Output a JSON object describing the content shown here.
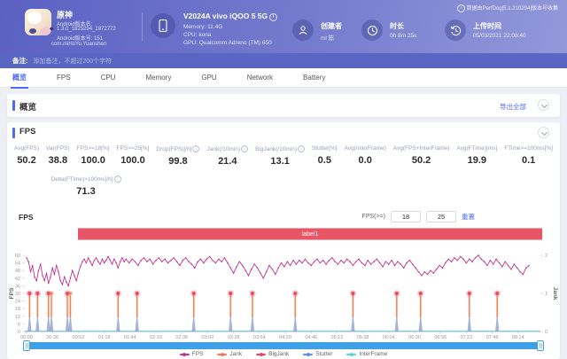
{
  "header": {
    "app": {
      "name": "原神",
      "version_name_label": "Android版本名:",
      "version_name_value": "1.3.0_1825294_1872772",
      "version_code_label": "Android版本号: 151",
      "package": "com.miHoYo.Yuanshen"
    },
    "device": {
      "title": "V2024A vivo iQOO 5 5G",
      "memory": "Memory: 11.4G",
      "cpu": "CPU: kona",
      "gpu": "GPU: Qualcomm Adreno (TM) 650"
    },
    "creator": {
      "label": "创建者",
      "value": "ml 陈"
    },
    "duration": {
      "label": "时长",
      "value": "0h 8m 25s"
    },
    "upload": {
      "label": "上传时间",
      "value": "05/03/2021 22:08:40"
    },
    "source_note": "数据由PerfDog[5.1.210204]版本号收集"
  },
  "note_bar": {
    "label": "备注:",
    "placeholder": "添加备注，不超过200个字符"
  },
  "tabs": [
    {
      "label": "概览",
      "active": true
    },
    {
      "label": "FPS",
      "active": false
    },
    {
      "label": "CPU",
      "active": false
    },
    {
      "label": "Memory",
      "active": false
    },
    {
      "label": "GPU",
      "active": false
    },
    {
      "label": "Network",
      "active": false
    },
    {
      "label": "Battery",
      "active": false
    }
  ],
  "overview_section": {
    "title": "概览",
    "export_label": "导出全部"
  },
  "fps_section": {
    "title": "FPS",
    "chart_title": "FPS",
    "metrics": [
      {
        "label": "Avg(FPS)",
        "value": "50.2",
        "info": false
      },
      {
        "label": "Var(FPS)",
        "value": "38.8",
        "info": false
      },
      {
        "label": "FPS>=18[%]",
        "value": "100.0",
        "info": false
      },
      {
        "label": "FPS>=25[%]",
        "value": "100.0",
        "info": false
      },
      {
        "label": "Drop(FPS)[/h]",
        "value": "99.8",
        "info": true
      },
      {
        "label": "Jank(/10min)",
        "value": "21.4",
        "info": true
      },
      {
        "label": "BigJank(/10min)",
        "value": "13.1",
        "info": true
      },
      {
        "label": "Stutter[%]",
        "value": "0.5",
        "info": false
      },
      {
        "label": "Avg(InterFrame)",
        "value": "0.0",
        "info": false
      },
      {
        "label": "Avg(FPS+InterFrame)",
        "value": "50.2",
        "info": false
      },
      {
        "label": "Avg(FTime)[ms]",
        "value": "19.9",
        "info": false
      },
      {
        "label": "FTime>=100ms[%]",
        "value": "0.1",
        "info": false
      }
    ],
    "metrics_row2": {
      "label": "Delta(FTime)>100ms[/h]",
      "value": "71.3",
      "info": true
    },
    "controls": {
      "label": "FPS(>=)",
      "low": "18",
      "high": "25",
      "reset": "重置"
    }
  },
  "chart_data": {
    "type": "line",
    "banner_label": "label1",
    "ylabel_left": "FPS",
    "ylabel_right": "Jank",
    "ylim_left": [
      0,
      60
    ],
    "yticks_left": [
      0,
      6,
      12,
      18,
      24,
      30,
      36,
      42,
      48,
      54,
      60
    ],
    "ylim_right": [
      0,
      2
    ],
    "yticks_right": [
      0,
      1,
      2
    ],
    "x_ticks": [
      "00:00",
      "00:26",
      "00:52",
      "01:18",
      "01:44",
      "02:10",
      "02:36",
      "03:02",
      "03:28",
      "03:54",
      "04:20",
      "04:46",
      "05:12",
      "05:38",
      "06:04",
      "06:30",
      "06:56",
      "07:22",
      "07:48",
      "08:14"
    ],
    "legend_position": "bottom",
    "scrollbar_color": "#3fa0e8",
    "banner_color": "#e85566",
    "series": [
      {
        "name": "FPS",
        "color": "#c0338f",
        "points": [
          [
            0,
            58
          ],
          [
            2,
            55
          ],
          [
            4,
            47
          ],
          [
            6,
            52
          ],
          [
            8,
            43
          ],
          [
            10,
            40
          ],
          [
            12,
            48
          ],
          [
            14,
            53
          ],
          [
            16,
            44
          ],
          [
            18,
            40
          ],
          [
            20,
            46
          ],
          [
            22,
            38
          ],
          [
            24,
            43
          ],
          [
            26,
            50
          ],
          [
            28,
            45
          ],
          [
            30,
            52
          ],
          [
            32,
            47
          ],
          [
            34,
            40
          ],
          [
            36,
            37
          ],
          [
            38,
            43
          ],
          [
            40,
            39
          ],
          [
            42,
            36
          ],
          [
            44,
            42
          ],
          [
            46,
            48
          ],
          [
            48,
            44
          ],
          [
            50,
            40
          ],
          [
            52,
            46
          ],
          [
            54,
            51
          ],
          [
            56,
            55
          ],
          [
            58,
            57
          ],
          [
            60,
            54
          ],
          [
            62,
            58
          ],
          [
            64,
            55
          ],
          [
            66,
            52
          ],
          [
            68,
            56
          ],
          [
            70,
            58
          ],
          [
            72,
            55
          ],
          [
            74,
            53
          ],
          [
            76,
            57
          ],
          [
            78,
            54
          ],
          [
            80,
            56
          ],
          [
            82,
            59
          ],
          [
            84,
            56
          ],
          [
            86,
            53
          ],
          [
            88,
            57
          ],
          [
            90,
            54
          ],
          [
            92,
            50
          ],
          [
            94,
            55
          ],
          [
            96,
            58
          ],
          [
            98,
            55
          ],
          [
            100,
            57
          ],
          [
            103,
            54
          ],
          [
            106,
            57
          ],
          [
            109,
            55
          ],
          [
            112,
            52
          ],
          [
            115,
            56
          ],
          [
            118,
            58
          ],
          [
            121,
            55
          ],
          [
            124,
            57
          ],
          [
            127,
            53
          ],
          [
            130,
            56
          ],
          [
            133,
            58
          ],
          [
            136,
            55
          ],
          [
            139,
            57
          ],
          [
            142,
            54
          ],
          [
            145,
            56
          ],
          [
            148,
            58
          ],
          [
            151,
            55
          ],
          [
            154,
            52
          ],
          [
            157,
            56
          ],
          [
            160,
            58
          ],
          [
            163,
            55
          ],
          [
            166,
            53
          ],
          [
            169,
            50
          ],
          [
            172,
            55
          ],
          [
            175,
            57
          ],
          [
            178,
            54
          ],
          [
            181,
            57
          ],
          [
            184,
            59
          ],
          [
            187,
            56
          ],
          [
            190,
            54
          ],
          [
            193,
            57
          ],
          [
            196,
            55
          ],
          [
            199,
            58
          ],
          [
            202,
            54
          ],
          [
            205,
            50
          ],
          [
            208,
            46
          ],
          [
            211,
            51
          ],
          [
            214,
            55
          ],
          [
            217,
            52
          ],
          [
            220,
            48
          ],
          [
            223,
            44
          ],
          [
            226,
            49
          ],
          [
            229,
            53
          ],
          [
            232,
            50
          ],
          [
            235,
            46
          ],
          [
            238,
            42
          ],
          [
            241,
            47
          ],
          [
            244,
            52
          ],
          [
            247,
            49
          ],
          [
            250,
            45
          ],
          [
            253,
            50
          ],
          [
            256,
            54
          ],
          [
            259,
            51
          ],
          [
            262,
            55
          ],
          [
            265,
            52
          ],
          [
            268,
            56
          ],
          [
            271,
            53
          ],
          [
            274,
            56
          ],
          [
            277,
            54
          ],
          [
            280,
            57
          ],
          [
            283,
            54
          ],
          [
            286,
            52
          ],
          [
            289,
            55
          ],
          [
            292,
            57
          ],
          [
            295,
            54
          ],
          [
            298,
            56
          ],
          [
            301,
            53
          ],
          [
            304,
            56
          ],
          [
            307,
            58
          ],
          [
            310,
            55
          ],
          [
            313,
            53
          ],
          [
            316,
            56
          ],
          [
            319,
            54
          ],
          [
            322,
            57
          ],
          [
            325,
            55
          ],
          [
            328,
            52
          ],
          [
            331,
            55
          ],
          [
            334,
            57
          ],
          [
            337,
            54
          ],
          [
            340,
            52
          ],
          [
            343,
            56
          ],
          [
            346,
            53
          ],
          [
            349,
            55
          ],
          [
            352,
            57
          ],
          [
            355,
            54
          ],
          [
            358,
            51
          ],
          [
            361,
            55
          ],
          [
            364,
            53
          ],
          [
            367,
            56
          ],
          [
            370,
            52
          ],
          [
            373,
            55
          ],
          [
            376,
            53
          ],
          [
            379,
            50
          ],
          [
            382,
            54
          ],
          [
            385,
            56
          ],
          [
            388,
            53
          ],
          [
            391,
            50
          ],
          [
            394,
            47
          ],
          [
            397,
            44
          ],
          [
            400,
            47
          ],
          [
            403,
            45
          ],
          [
            406,
            48
          ],
          [
            409,
            46
          ],
          [
            412,
            49
          ],
          [
            415,
            52
          ],
          [
            418,
            50
          ],
          [
            421,
            54
          ],
          [
            424,
            57
          ],
          [
            427,
            55
          ],
          [
            430,
            58
          ],
          [
            433,
            56
          ],
          [
            436,
            59
          ],
          [
            439,
            57
          ],
          [
            442,
            54
          ],
          [
            445,
            57
          ],
          [
            448,
            55
          ],
          [
            451,
            58
          ],
          [
            454,
            60
          ],
          [
            457,
            57
          ],
          [
            460,
            55
          ],
          [
            463,
            52
          ],
          [
            466,
            56
          ],
          [
            469,
            53
          ],
          [
            472,
            57
          ],
          [
            475,
            54
          ],
          [
            478,
            51
          ],
          [
            481,
            55
          ],
          [
            484,
            52
          ],
          [
            487,
            49
          ],
          [
            490,
            53
          ],
          [
            493,
            50
          ],
          [
            496,
            47
          ],
          [
            499,
            45
          ],
          [
            502,
            50
          ],
          [
            505,
            52
          ]
        ]
      },
      {
        "name": "Jank",
        "color": "#ee7c4f"
      },
      {
        "name": "BigJank",
        "color": "#e8485c"
      },
      {
        "name": "Stutter",
        "color": "#5b8ff9"
      },
      {
        "name": "InterFrame",
        "color": "#56d2e8"
      }
    ],
    "jank_events": [
      {
        "t": 3,
        "big": true
      },
      {
        "t": 11,
        "big": true
      },
      {
        "t": 22,
        "big": true
      },
      {
        "t": 25,
        "big": false
      },
      {
        "t": 41,
        "big": true
      },
      {
        "t": 44,
        "big": false
      },
      {
        "t": 92,
        "big": true
      },
      {
        "t": 111,
        "big": true
      },
      {
        "t": 168,
        "big": true
      },
      {
        "t": 205,
        "big": true
      },
      {
        "t": 227,
        "big": true
      },
      {
        "t": 270,
        "big": true
      },
      {
        "t": 328,
        "big": true
      },
      {
        "t": 372,
        "big": true
      },
      {
        "t": 396,
        "big": true
      },
      {
        "t": 445,
        "big": true
      },
      {
        "t": 473,
        "big": true
      }
    ]
  }
}
